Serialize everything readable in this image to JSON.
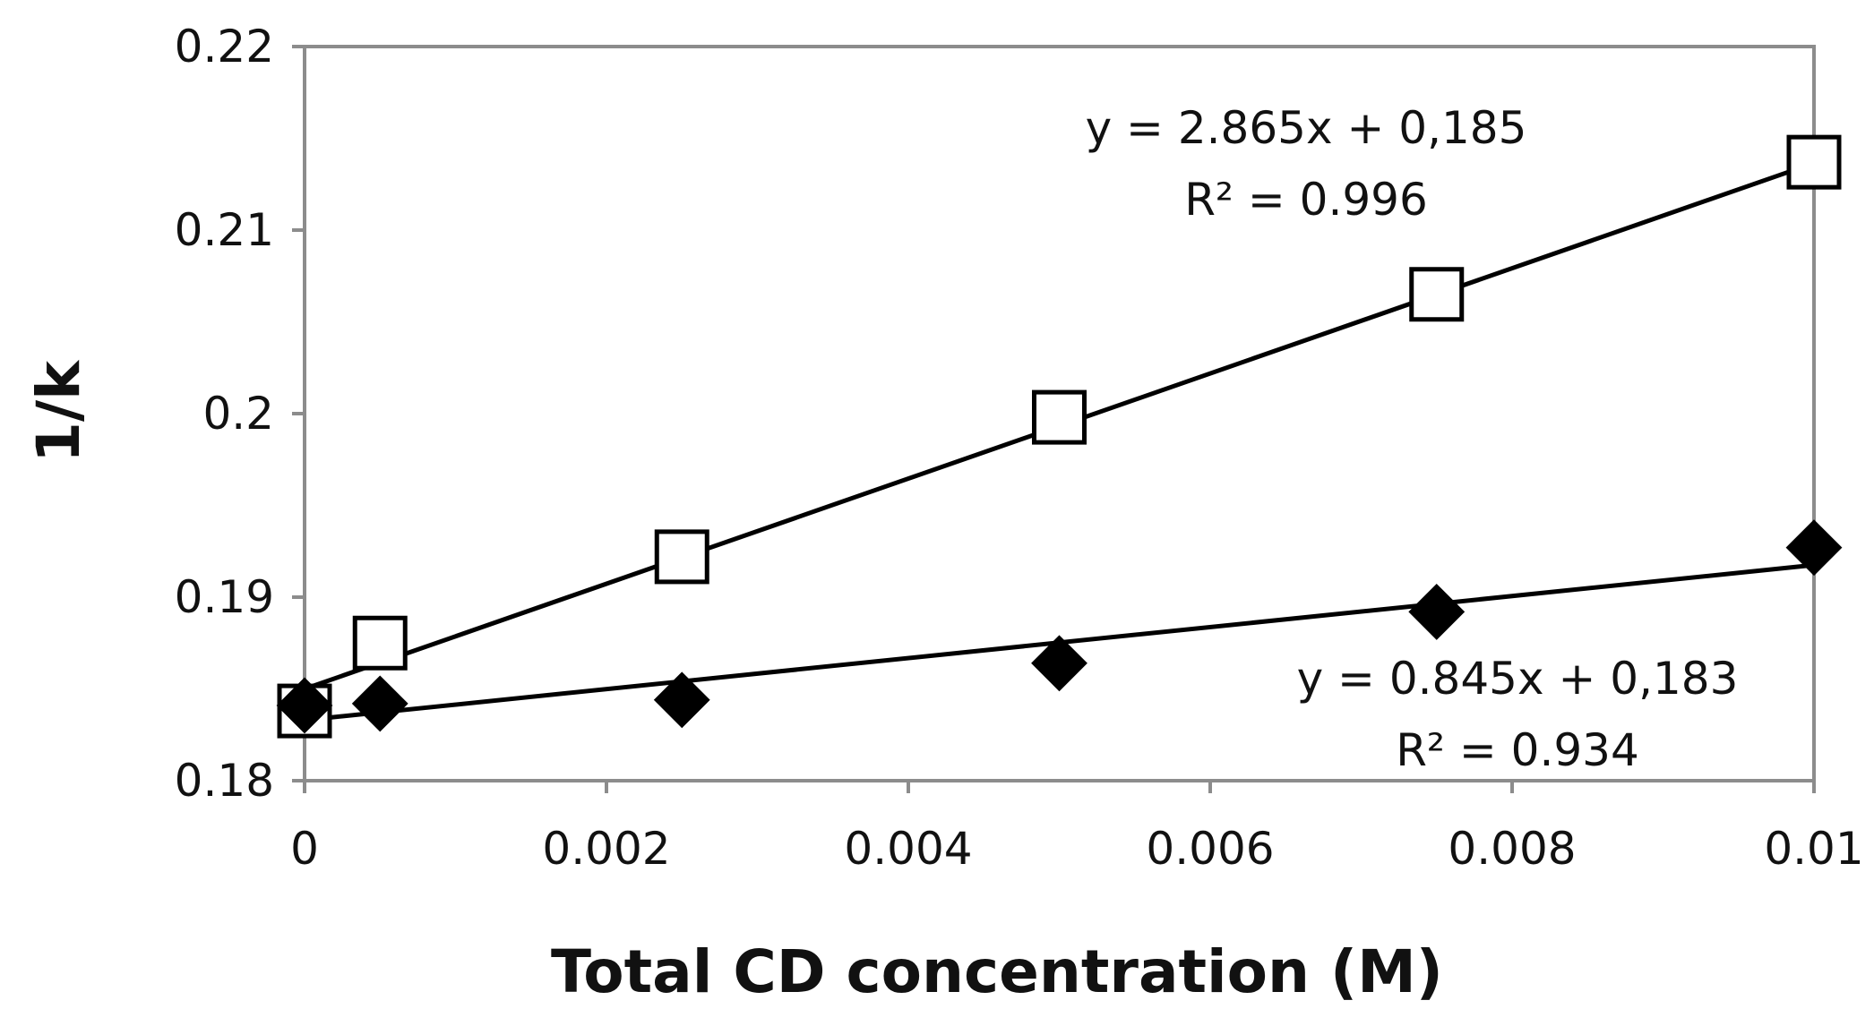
{
  "chart_data": {
    "type": "scatter",
    "title": "",
    "xlabel": "Total CD concentration  (M)",
    "ylabel": "1/k",
    "xlim": [
      0,
      0.01
    ],
    "ylim": [
      0.18,
      0.22
    ],
    "x_ticks": [
      0,
      0.002,
      0.004,
      0.006,
      0.008,
      0.01
    ],
    "x_tick_labels": [
      "0",
      "0.002",
      "0.004",
      "0.006",
      "0.008",
      "0.01"
    ],
    "y_ticks": [
      0.18,
      0.19,
      0.2,
      0.21,
      0.22
    ],
    "y_tick_labels": [
      "0.18",
      "0.19",
      "0.2",
      "0.21",
      "0.22"
    ],
    "grid": false,
    "series": [
      {
        "name": "open squares",
        "marker": "square-open",
        "x": [
          0,
          0.0005,
          0.0025,
          0.005,
          0.0075,
          0.01
        ],
        "y": [
          0.1838,
          0.1875,
          0.1922,
          0.1998,
          0.2065,
          0.2137
        ],
        "trendline": {
          "slope": 2.865,
          "intercept": 0.185
        },
        "equation_label": "y = 2.865x + 0,185",
        "r2_label": "R² = 0.996"
      },
      {
        "name": "filled diamonds",
        "marker": "diamond-filled",
        "x": [
          0,
          0.0005,
          0.0025,
          0.005,
          0.0075,
          0.01
        ],
        "y": [
          0.1841,
          0.1842,
          0.1844,
          0.1864,
          0.1892,
          0.1927
        ],
        "trendline": {
          "slope": 0.845,
          "intercept": 0.1833
        },
        "equation_label": "y = 0.845x + 0,183",
        "r2_label": "R² = 0.934"
      }
    ]
  }
}
